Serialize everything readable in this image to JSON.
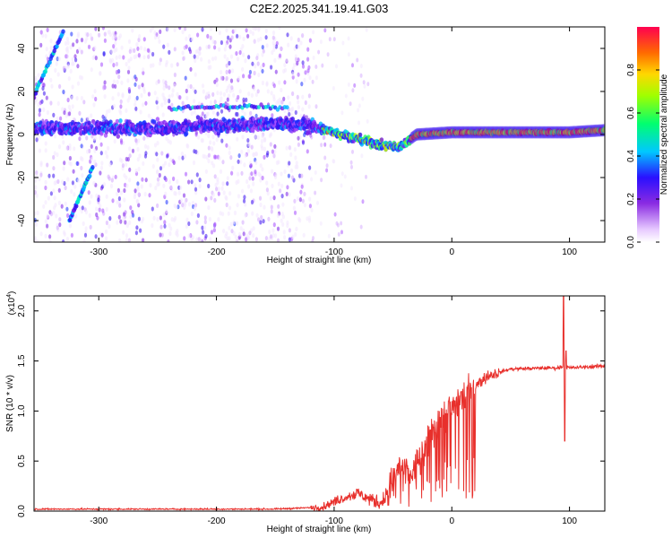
{
  "title": "C2E2.2025.341.19.41.G03",
  "chart_data": [
    {
      "type": "heatmap",
      "name": "spectrogram",
      "xlabel": "Height of straight line (km)",
      "ylabel": "Frequency (Hz)",
      "xlim": [
        -355,
        130
      ],
      "ylim": [
        -50,
        50
      ],
      "x_ticks": [
        -300,
        -200,
        -100,
        0,
        100
      ],
      "y_ticks": [
        -40,
        -20,
        0,
        20,
        40
      ],
      "colorbar": {
        "label": "Normalized spectral amplitude",
        "range": [
          0,
          1
        ],
        "ticks": [
          "0.0",
          "0.2",
          "0.4",
          "0.6",
          "0.8"
        ]
      },
      "main_track": [
        {
          "x": -350,
          "f": 3
        },
        {
          "x": -300,
          "f": 3
        },
        {
          "x": -250,
          "f": 3
        },
        {
          "x": -200,
          "f": 4
        },
        {
          "x": -150,
          "f": 5
        },
        {
          "x": -120,
          "f": 4
        },
        {
          "x": -100,
          "f": 1
        },
        {
          "x": -80,
          "f": -2
        },
        {
          "x": -60,
          "f": -5
        },
        {
          "x": -45,
          "f": -6
        },
        {
          "x": -40,
          "f": -4
        },
        {
          "x": -30,
          "f": 0
        },
        {
          "x": 0,
          "f": 1
        },
        {
          "x": 50,
          "f": 1
        },
        {
          "x": 100,
          "f": 1
        },
        {
          "x": 130,
          "f": 2
        }
      ],
      "upper_track": [
        {
          "x": -240,
          "f": 12
        },
        {
          "x": -200,
          "f": 13
        },
        {
          "x": -160,
          "f": 13
        },
        {
          "x": -140,
          "f": 12
        }
      ],
      "alias_tracks": [
        [
          {
            "x": -355,
            "f": 18
          },
          {
            "x": -330,
            "f": 48
          }
        ],
        [
          {
            "x": -325,
            "f": -40
          },
          {
            "x": -305,
            "f": -15
          }
        ]
      ]
    },
    {
      "type": "line",
      "name": "snr",
      "xlabel": "Height of straight line (km)",
      "ylabel": "SNR (10 * v/v)",
      "y_multiplier": "(x10",
      "y_multiplier_exp": "4",
      "y_multiplier_close": ")",
      "xlim": [
        -355,
        130
      ],
      "ylim": [
        0,
        2.15
      ],
      "x_ticks": [
        -300,
        -200,
        -100,
        0,
        100
      ],
      "y_ticks": [
        "0.0",
        "0.5",
        "1.0",
        "1.5",
        "2.0"
      ],
      "series_color": "#e8302c",
      "control_points": [
        {
          "x": -355,
          "y": 0.02
        },
        {
          "x": -150,
          "y": 0.02
        },
        {
          "x": -110,
          "y": 0.04
        },
        {
          "x": -95,
          "y": 0.12
        },
        {
          "x": -80,
          "y": 0.18
        },
        {
          "x": -70,
          "y": 0.12
        },
        {
          "x": -60,
          "y": 0.08
        },
        {
          "x": -52,
          "y": 0.25
        },
        {
          "x": -45,
          "y": 0.45
        },
        {
          "x": -35,
          "y": 0.35
        },
        {
          "x": -25,
          "y": 0.55
        },
        {
          "x": -15,
          "y": 0.85
        },
        {
          "x": 0,
          "y": 1.05
        },
        {
          "x": 15,
          "y": 1.2
        },
        {
          "x": 30,
          "y": 1.35
        },
        {
          "x": 50,
          "y": 1.42
        },
        {
          "x": 80,
          "y": 1.43
        },
        {
          "x": 90,
          "y": 1.43
        },
        {
          "x": 95,
          "y": 1.45
        },
        {
          "x": 100,
          "y": 1.43
        },
        {
          "x": 130,
          "y": 1.45
        }
      ],
      "spikes": [
        {
          "x": 95,
          "y": 2.15
        },
        {
          "x": 96,
          "y": 0.7
        },
        {
          "x": 97,
          "y": 1.6
        }
      ]
    }
  ]
}
